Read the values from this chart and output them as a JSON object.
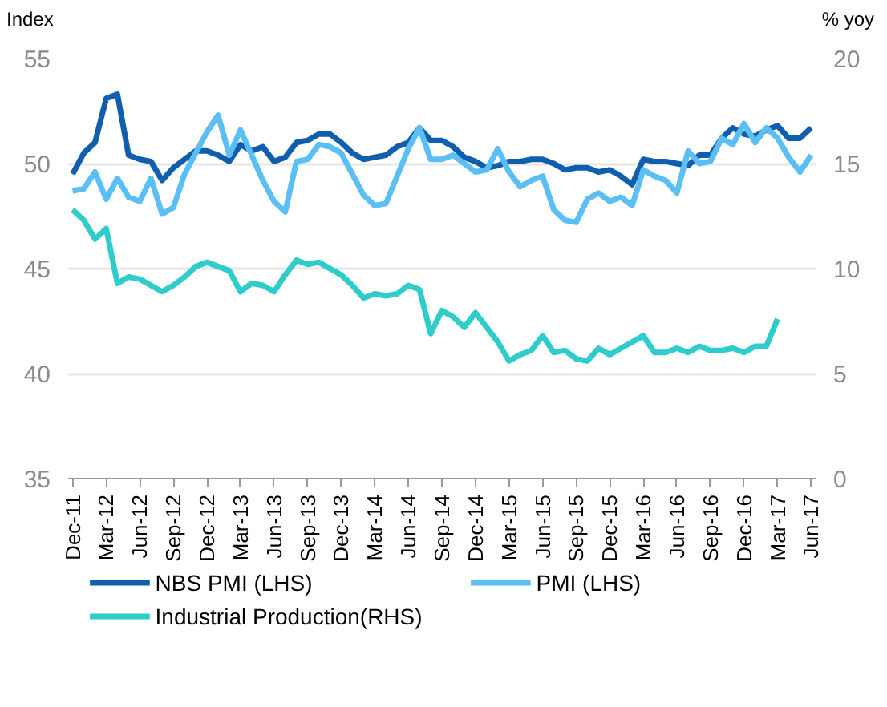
{
  "chart_data": {
    "type": "line",
    "ylabel": "Index",
    "y2label": "% yoy",
    "categories": [
      "Dec-11",
      null,
      null,
      "Mar-12",
      null,
      null,
      "Jun-12",
      null,
      null,
      "Sep-12",
      null,
      null,
      "Dec-12",
      null,
      null,
      "Mar-13",
      null,
      null,
      "Jun-13",
      null,
      null,
      "Sep-13",
      null,
      null,
      "Dec-13",
      null,
      null,
      "Mar-14",
      null,
      null,
      "Jun-14",
      null,
      null,
      "Sep-14",
      null,
      null,
      "Dec-14",
      null,
      null,
      "Mar-15",
      null,
      null,
      "Jun-15",
      null,
      null,
      "Sep-15",
      null,
      null,
      "Dec-15",
      null,
      null,
      "Mar-16",
      null,
      null,
      "Jun-16",
      null,
      null,
      "Sep-16",
      null,
      null,
      "Dec-16",
      null,
      null,
      "Mar-17",
      null,
      null,
      "Jun-17"
    ],
    "series": [
      {
        "name": "NBS PMI (LHS)",
        "color": "#0f5fae",
        "values": [
          49.5,
          50.5,
          51.0,
          53.1,
          53.3,
          50.4,
          50.2,
          50.1,
          49.2,
          49.8,
          50.2,
          50.6,
          50.6,
          50.4,
          50.1,
          50.9,
          50.6,
          50.8,
          50.1,
          50.3,
          51.0,
          51.1,
          51.4,
          51.4,
          51.0,
          50.5,
          50.2,
          50.3,
          50.4,
          50.8,
          51.0,
          51.7,
          51.1,
          51.1,
          50.8,
          50.3,
          50.1,
          49.8,
          49.9,
          50.1,
          50.1,
          50.2,
          50.2,
          50.0,
          49.7,
          49.8,
          49.8,
          49.6,
          49.7,
          49.4,
          49.0,
          50.2,
          50.1,
          50.1,
          50.0,
          49.9,
          50.4,
          50.4,
          51.2,
          51.7,
          51.4,
          51.3,
          51.6,
          51.8,
          51.2,
          51.2,
          51.7
        ]
      },
      {
        "name": "PMI (LHS)",
        "color": "#5bbff5",
        "values": [
          48.7,
          48.8,
          49.6,
          48.3,
          49.3,
          48.4,
          48.2,
          49.3,
          47.6,
          47.9,
          49.5,
          50.5,
          51.5,
          52.3,
          50.4,
          51.6,
          50.4,
          49.2,
          48.2,
          47.7,
          50.1,
          50.2,
          50.9,
          50.8,
          50.5,
          49.5,
          48.5,
          48.0,
          48.1,
          49.4,
          50.7,
          51.7,
          50.2,
          50.2,
          50.4,
          50.0,
          49.6,
          49.7,
          50.7,
          49.6,
          48.9,
          49.2,
          49.4,
          47.8,
          47.3,
          47.2,
          48.3,
          48.6,
          48.2,
          48.4,
          48.0,
          49.7,
          49.4,
          49.2,
          48.6,
          50.6,
          50.0,
          50.1,
          51.2,
          50.9,
          51.9,
          51.0,
          51.7,
          51.2,
          50.3,
          49.6,
          50.4
        ]
      },
      {
        "name": "Industrial Production(RHS)",
        "color": "#2fcccb",
        "axis": "y2",
        "values": [
          12.8,
          12.3,
          11.4,
          11.9,
          9.3,
          9.6,
          9.5,
          9.2,
          8.9,
          9.2,
          9.6,
          10.1,
          10.3,
          10.1,
          9.9,
          8.9,
          9.3,
          9.2,
          8.9,
          9.7,
          10.4,
          10.2,
          10.3,
          10.0,
          9.7,
          9.2,
          8.6,
          8.8,
          8.7,
          8.8,
          9.2,
          9.0,
          6.9,
          8.0,
          7.7,
          7.2,
          7.9,
          7.2,
          6.5,
          5.6,
          5.9,
          6.1,
          6.8,
          6.0,
          6.1,
          5.7,
          5.6,
          6.2,
          5.9,
          6.2,
          6.5,
          6.8,
          6.0,
          6.0,
          6.2,
          6.0,
          6.3,
          6.1,
          6.1,
          6.2,
          6.0,
          6.3,
          6.3,
          7.6,
          null,
          null,
          null
        ]
      }
    ],
    "ylim": [
      35,
      55
    ],
    "yticks": [
      35,
      40,
      45,
      50,
      55
    ],
    "y2lim": [
      0,
      20
    ],
    "y2ticks": [
      0,
      5,
      10,
      15,
      20
    ],
    "grid": "y",
    "legend": "bottom"
  }
}
